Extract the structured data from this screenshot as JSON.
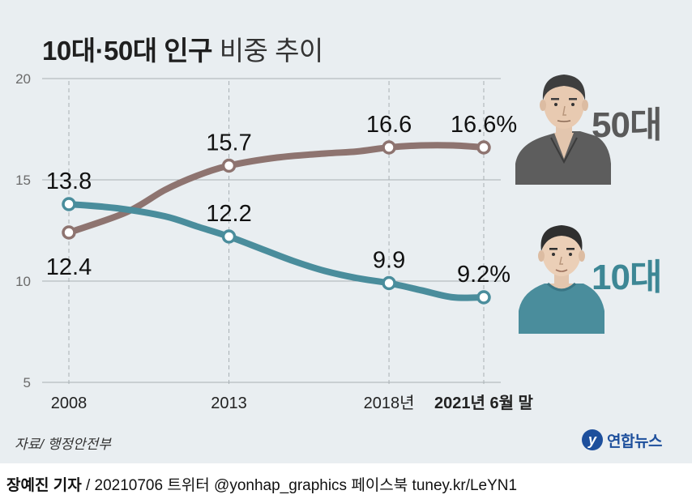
{
  "title": {
    "bold": "10대·50대 인구",
    "normal": "비중 추이"
  },
  "source": "자료/ 행정안전부",
  "logo": {
    "mark": "y",
    "text": "연합뉴스"
  },
  "credit": {
    "author": "장예진 기자",
    "rest": " / 20210706 트위터 @yonhap_graphics  페이스북 tuney.kr/LeYN1"
  },
  "legend": {
    "fifties": "50대",
    "teens": "10대"
  },
  "colors": {
    "fifties": "#8e7470",
    "teens": "#4a8d9c",
    "panel": "#e9eef1",
    "grid": "#a9b0b4"
  },
  "chart_data": {
    "type": "line",
    "title": "10대·50대 인구 비중 추이",
    "xlabel": "",
    "ylabel": "",
    "ylim": [
      5,
      20
    ],
    "yticks": [
      5,
      10,
      15,
      20
    ],
    "x_ticks": [
      {
        "label": "2008",
        "t": 0,
        "bold": false
      },
      {
        "label": "2013",
        "t": 5,
        "bold": false
      },
      {
        "label": "2018년",
        "t": 10,
        "bold": false
      },
      {
        "label": "2021년 6월 말",
        "t": 12.96,
        "bold": true
      }
    ],
    "series": [
      {
        "name": "50대",
        "color": "#8e7470",
        "curve": [
          [
            0,
            12.4
          ],
          [
            1.8,
            13.4
          ],
          [
            3,
            14.5
          ],
          [
            4,
            15.2
          ],
          [
            5,
            15.7
          ],
          [
            6.5,
            16.1
          ],
          [
            8,
            16.3
          ],
          [
            9,
            16.4
          ],
          [
            10,
            16.6
          ],
          [
            11,
            16.7
          ],
          [
            12,
            16.7
          ],
          [
            12.96,
            16.6
          ]
        ],
        "points": [
          {
            "t": 0,
            "value": 12.4,
            "label": "12.4",
            "pos": "below"
          },
          {
            "t": 5,
            "value": 15.7,
            "label": "15.7",
            "pos": "above"
          },
          {
            "t": 10,
            "value": 16.6,
            "label": "16.6",
            "pos": "above"
          },
          {
            "t": 12.96,
            "value": 16.6,
            "label": "16.6%",
            "pos": "above"
          }
        ]
      },
      {
        "name": "10대",
        "color": "#4a8d9c",
        "curve": [
          [
            0,
            13.8
          ],
          [
            1.5,
            13.6
          ],
          [
            3,
            13.2
          ],
          [
            4,
            12.7
          ],
          [
            5,
            12.2
          ],
          [
            6,
            11.6
          ],
          [
            7,
            11
          ],
          [
            8,
            10.5
          ],
          [
            9,
            10.15
          ],
          [
            10,
            9.9
          ],
          [
            11,
            9.55
          ],
          [
            12,
            9.2
          ],
          [
            12.96,
            9.2
          ]
        ],
        "points": [
          {
            "t": 0,
            "value": 13.8,
            "label": "13.8",
            "pos": "above"
          },
          {
            "t": 5,
            "value": 12.2,
            "label": "12.2",
            "pos": "above"
          },
          {
            "t": 10,
            "value": 9.9,
            "label": "9.9",
            "pos": "above"
          },
          {
            "t": 12.96,
            "value": 9.2,
            "label": "9.2%",
            "pos": "above"
          }
        ]
      }
    ]
  }
}
